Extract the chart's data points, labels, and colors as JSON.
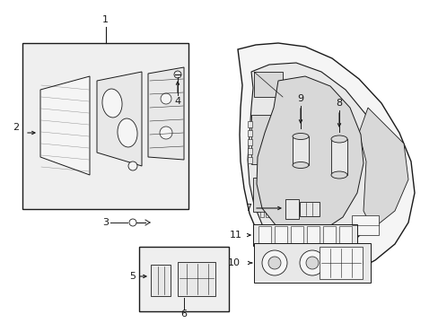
{
  "bg_color": "#ffffff",
  "lc": "#1a1a1a",
  "figsize": [
    4.89,
    3.6
  ],
  "dpi": 100,
  "fc_light": "#f5f5f5",
  "fc_mid": "#e8e8e8",
  "fc_dark": "#d8d8d8",
  "fc_box": "#efefef"
}
